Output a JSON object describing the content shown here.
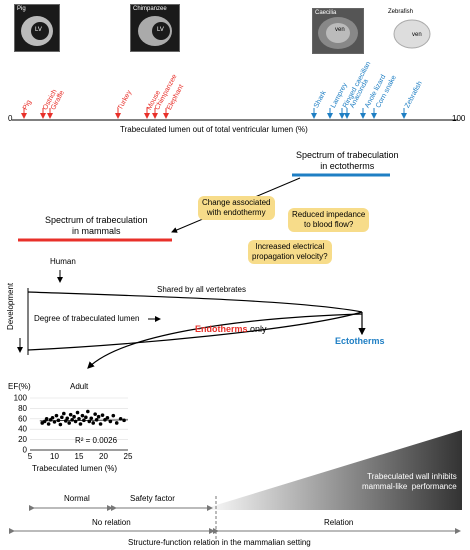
{
  "images": {
    "pig": {
      "label": "Pig",
      "chamber": "LV"
    },
    "chimpanzee": {
      "label": "Chimpanzee",
      "chamber": "LV"
    },
    "caecilian": {
      "label": "Caecilia",
      "chamber": "ven"
    },
    "zebrafish": {
      "label": "Zebrafish",
      "chamber": "ven"
    }
  },
  "mammal_species": [
    "Pig",
    "Ostrich",
    "Giraffe",
    "Turkey",
    "Mouse",
    "Chimpanzee",
    "Elephant"
  ],
  "ectotherm_species": [
    "Shark",
    "Lamprey",
    "Ringed caecilian",
    "Anaconda",
    "Anole lizard",
    "Corn snake",
    "Zebrafish"
  ],
  "axis": {
    "min_label": "0",
    "max_label": "100",
    "title": "Trabeculated lumen out of total ventricular lumen  (%)"
  },
  "spectrum_ectotherms": "Spectrum of trabeculation\nin ectotherms",
  "spectrum_mammals": "Spectrum of trabeculation\nin mammals",
  "notes": {
    "endothermy": "Change associated\nwith endothermy",
    "impedance": "Reduced impedance\nto blood flow?",
    "electrical": "Increased electrical\npropagation velocity?"
  },
  "human_label": "Human",
  "development_label": "Development",
  "shared_label": "Shared by all vertebrates",
  "degree_label": "Degree of trabeculated lumen",
  "endotherms_label": "Endotherms",
  "only_label": " only",
  "ectotherms_label": "Ectotherms",
  "adult_label": "Adult",
  "chart_data": {
    "type": "scatter",
    "ylabel": "EF(%)",
    "xlabel": "Trabeculated lumen  (%)",
    "xlim": [
      5,
      25
    ],
    "ylim": [
      0,
      100
    ],
    "xticks": [
      5,
      10,
      15,
      20,
      25
    ],
    "yticks": [
      0,
      20,
      40,
      60,
      80,
      100
    ],
    "r2_label": "R² = 0.0026",
    "points": [
      [
        7.5,
        52
      ],
      [
        8,
        55
      ],
      [
        8.4,
        60
      ],
      [
        8.8,
        50
      ],
      [
        9.2,
        58
      ],
      [
        9.6,
        62
      ],
      [
        10,
        54
      ],
      [
        10.4,
        66
      ],
      [
        10.8,
        57
      ],
      [
        11.2,
        49
      ],
      [
        11.5,
        63
      ],
      [
        11.9,
        70
      ],
      [
        12.3,
        56
      ],
      [
        12.6,
        61
      ],
      [
        13,
        52
      ],
      [
        13.3,
        68
      ],
      [
        13.6,
        58
      ],
      [
        14,
        64
      ],
      [
        14.3,
        55
      ],
      [
        14.7,
        72
      ],
      [
        15,
        60
      ],
      [
        15.3,
        50
      ],
      [
        15.7,
        66
      ],
      [
        16,
        57
      ],
      [
        16.4,
        63
      ],
      [
        16.8,
        74
      ],
      [
        17.1,
        55
      ],
      [
        17.5,
        61
      ],
      [
        17.9,
        52
      ],
      [
        18.3,
        69
      ],
      [
        18.6,
        58
      ],
      [
        19,
        64
      ],
      [
        19.4,
        50
      ],
      [
        19.8,
        67
      ],
      [
        20.3,
        58
      ],
      [
        20.8,
        62
      ],
      [
        21.4,
        55
      ],
      [
        22,
        66
      ],
      [
        22.7,
        52
      ],
      [
        23.5,
        60
      ],
      [
        24.2,
        57
      ]
    ],
    "trend": [
      [
        7,
        56
      ],
      [
        25,
        58
      ]
    ]
  },
  "bottom": {
    "normal": "Normal",
    "safety": "Safety factor",
    "wall_text": "Trabeculated wall inhibits\nmammal-like  performance",
    "no_relation": "No relation",
    "relation": "Relation",
    "caption": "Structure-function relation in the mammalian setting"
  },
  "colors": {
    "red": "#e8302a",
    "blue": "#1f7fc4",
    "note": "#f7dc8a"
  }
}
